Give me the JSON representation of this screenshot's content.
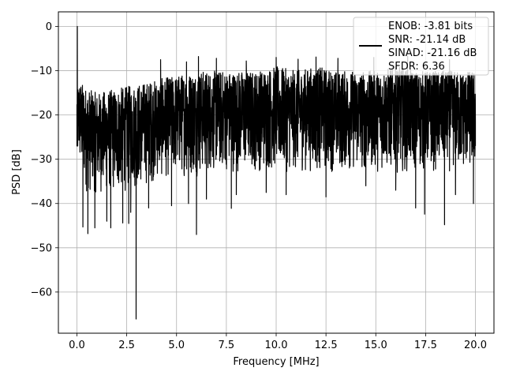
{
  "chart_data": {
    "type": "line",
    "xlabel": "Frequency [MHz]",
    "ylabel": "PSD [dB]",
    "xlim": [
      -0.93,
      20.93
    ],
    "ylim": [
      -69.3,
      3.3
    ],
    "xticks": [
      0.0,
      2.5,
      5.0,
      7.5,
      10.0,
      12.5,
      15.0,
      17.5,
      20.0
    ],
    "xtick_labels": [
      "0.0",
      "2.5",
      "5.0",
      "7.5",
      "10.0",
      "12.5",
      "15.0",
      "17.5",
      "20.0"
    ],
    "yticks": [
      0,
      -10,
      -20,
      -30,
      -40,
      -50,
      -60
    ],
    "ytick_labels": [
      "0",
      "−10",
      "−20",
      "−30",
      "−40",
      "−50",
      "−60"
    ],
    "grid": true,
    "legend_position": "top-right",
    "legend_entries": [
      "ENOB: -3.81 bits",
      "SNR: -21.14 dB",
      "SINAD: -21.16 dB",
      "SFDR: 6.36"
    ],
    "series": [
      {
        "color": "#000000",
        "noise_floor_envelope": {
          "x": [
            0.0,
            0.1,
            0.5,
            1.0,
            2.0,
            3.0,
            4.0,
            5.0,
            6.0,
            7.0,
            8.0,
            9.0,
            10.0,
            11.0,
            12.0,
            13.0,
            14.0,
            15.0,
            16.0,
            17.0,
            18.0,
            19.0,
            20.0
          ],
          "upper": [
            -14,
            -12,
            -14,
            -15,
            -14,
            -13,
            -12,
            -11,
            -10,
            -10,
            -10,
            -10,
            -9,
            -10,
            -9,
            -10,
            -10,
            -10,
            -9,
            -10,
            -10,
            -10,
            -10
          ],
          "lower": [
            -28,
            -32,
            -38,
            -38,
            -38,
            -37,
            -35,
            -34,
            -34,
            -33,
            -33,
            -33,
            -33,
            -33,
            -33,
            -33,
            -33,
            -33,
            -33,
            -33,
            -33,
            -33,
            -33
          ]
        },
        "points": [
          [
            0.0,
            -27.0
          ],
          [
            0.02,
            0.0
          ],
          [
            0.04,
            -27.0
          ],
          [
            0.08,
            -18.0
          ],
          [
            0.3,
            -45.3
          ],
          [
            0.55,
            -46.8
          ],
          [
            0.9,
            -45.5
          ],
          [
            1.5,
            -44.0
          ],
          [
            1.7,
            -45.5
          ],
          [
            2.3,
            -44.4
          ],
          [
            2.6,
            -44.5
          ],
          [
            2.7,
            -42.0
          ],
          [
            2.97,
            -66.1
          ],
          [
            3.6,
            -41.0
          ],
          [
            4.75,
            -40.5
          ],
          [
            5.6,
            -40.0
          ],
          [
            6.0,
            -47.0
          ],
          [
            6.5,
            -39.0
          ],
          [
            7.75,
            -41.1
          ],
          [
            8.0,
            -38.0
          ],
          [
            9.5,
            -37.5
          ],
          [
            10.5,
            -38.0
          ],
          [
            12.5,
            -38.5
          ],
          [
            14.5,
            -36.0
          ],
          [
            16.0,
            -37.0
          ],
          [
            17.0,
            -41.0
          ],
          [
            17.45,
            -42.4
          ],
          [
            18.45,
            -44.8
          ],
          [
            19.0,
            -38.0
          ],
          [
            19.9,
            -40.0
          ],
          [
            20.0,
            -27.0
          ],
          [
            4.2,
            -7.5
          ],
          [
            5.5,
            -8.0
          ],
          [
            6.1,
            -6.8
          ],
          [
            7.0,
            -7.2
          ],
          [
            8.5,
            -7.8
          ],
          [
            10.0,
            -7.0
          ],
          [
            11.1,
            -7.4
          ],
          [
            12.0,
            -6.9
          ],
          [
            13.1,
            -7.2
          ],
          [
            14.9,
            -7.0
          ],
          [
            16.6,
            -6.7
          ],
          [
            18.7,
            -7.5
          ]
        ]
      }
    ]
  }
}
